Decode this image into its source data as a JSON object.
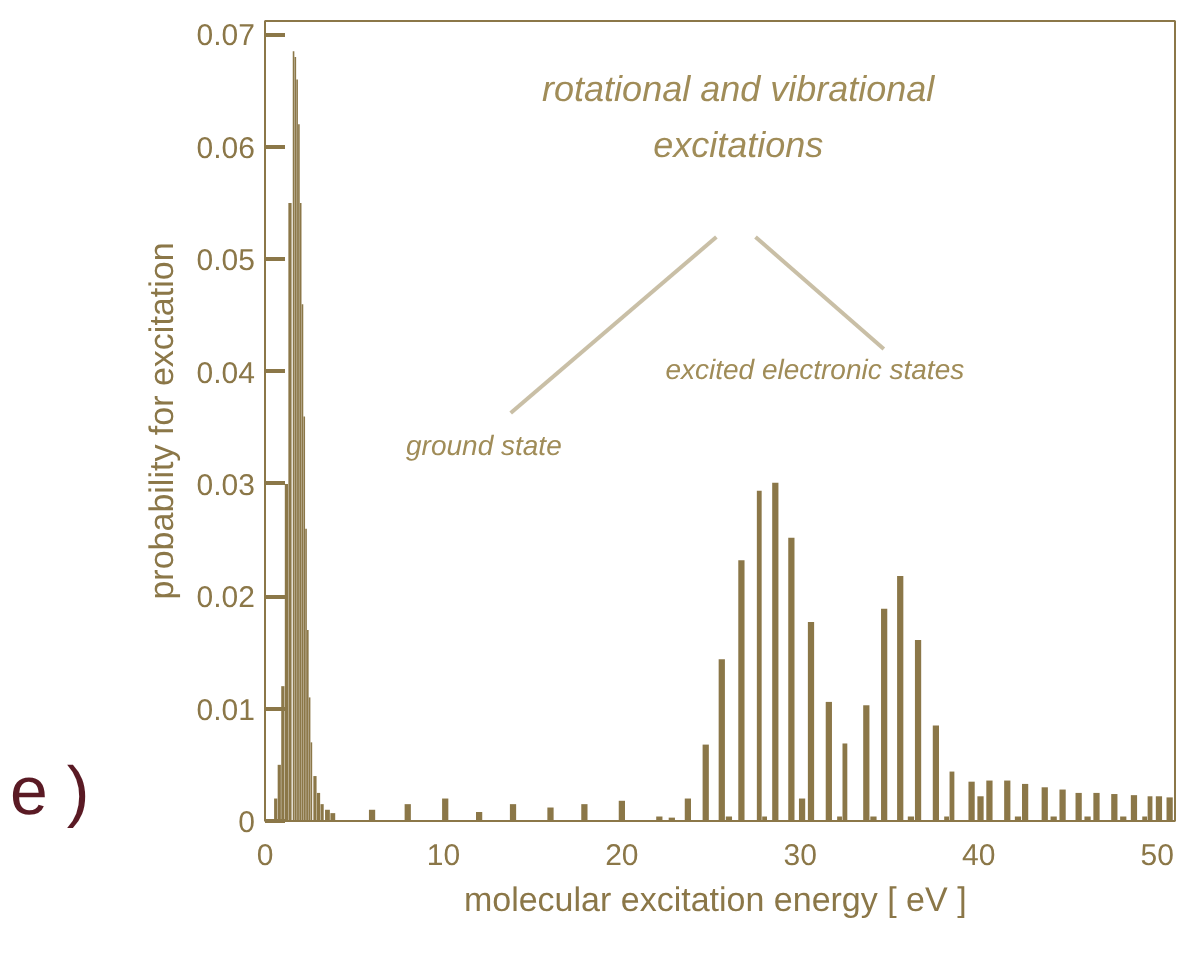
{
  "chart_data": {
    "type": "bar",
    "xlabel": "molecular excitation energy  [ eV ]",
    "ylabel": "probability for excitation",
    "annotations": [
      "rotational and vibrational excitations",
      "ground state",
      "excited electronic states",
      "e )"
    ],
    "x": [
      0.6,
      0.8,
      1.0,
      1.2,
      1.4,
      1.6,
      1.7,
      1.8,
      1.9,
      2.0,
      2.1,
      2.2,
      2.3,
      2.4,
      2.5,
      2.6,
      2.8,
      3.0,
      3.2,
      3.5,
      3.8,
      6.0,
      8.0,
      10.1,
      12.0,
      13.9,
      16.0,
      17.9,
      20.0,
      22.1,
      22.8,
      23.7,
      24.7,
      25.6,
      26.0,
      26.7,
      27.7,
      28.0,
      28.6,
      29.5,
      30.1,
      30.6,
      31.6,
      32.2,
      32.5,
      33.7,
      34.1,
      34.7,
      35.6,
      36.2,
      36.6,
      37.6,
      38.2,
      38.5,
      39.6,
      40.1,
      40.6,
      41.6,
      42.2,
      42.6,
      43.7,
      44.2,
      44.7,
      45.6,
      46.1,
      46.6,
      47.6,
      48.1,
      48.7,
      49.3,
      49.6,
      50.1,
      50.7
    ],
    "series": [
      {
        "color": "#8b7748",
        "values": [
          0.002,
          0.005,
          0.012,
          0.03,
          0.055,
          0.0685,
          0.068,
          0.066,
          0.062,
          0.055,
          0.046,
          0.036,
          0.026,
          0.017,
          0.011,
          0.007,
          0.004,
          0.0025,
          0.0015,
          0.001,
          0.0007,
          0.001,
          0.0015,
          0.002,
          0.0008,
          0.0015,
          0.0012,
          0.0015,
          0.0018,
          0.0004,
          0.0003,
          0.002,
          0.0068,
          0.0144,
          0.0004,
          0.0232,
          0.0294,
          0.0004,
          0.0301,
          0.0252,
          0.002,
          0.0177,
          0.0106,
          0.0004,
          0.0069,
          0.0103,
          0.0004,
          0.0189,
          0.0218,
          0.0004,
          0.0161,
          0.0085,
          0.0004,
          0.0044,
          0.0035,
          0.0022,
          0.0036,
          0.0036,
          0.0004,
          0.0033,
          0.003,
          0.0004,
          0.0028,
          0.0025,
          0.0004,
          0.0025,
          0.0024,
          0.0004,
          0.0023,
          0.0004,
          0.0022,
          0.0022,
          0.0021
        ]
      }
    ],
    "xlim": [
      0,
      51
    ],
    "ylim": [
      0,
      0.0712
    ],
    "xticks": [
      0,
      10,
      20,
      30,
      40,
      50
    ],
    "yticks": [
      0,
      0.01,
      0.02,
      0.03,
      0.04,
      0.05,
      0.06,
      0.07
    ],
    "grid": false
  }
}
